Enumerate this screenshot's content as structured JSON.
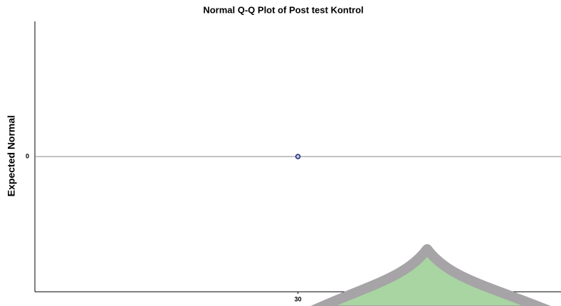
{
  "chart_data": {
    "type": "scatter",
    "title": "Normal Q-Q Plot of Post test Kontrol",
    "y_label": "Expected Normal",
    "x": [
      30
    ],
    "values": [
      0
    ],
    "color": "#1f2a6b",
    "xlim": [
      29,
      31
    ],
    "xticks": [
      30
    ],
    "ylim": [
      -1,
      1
    ],
    "yticks": [
      0
    ]
  }
}
